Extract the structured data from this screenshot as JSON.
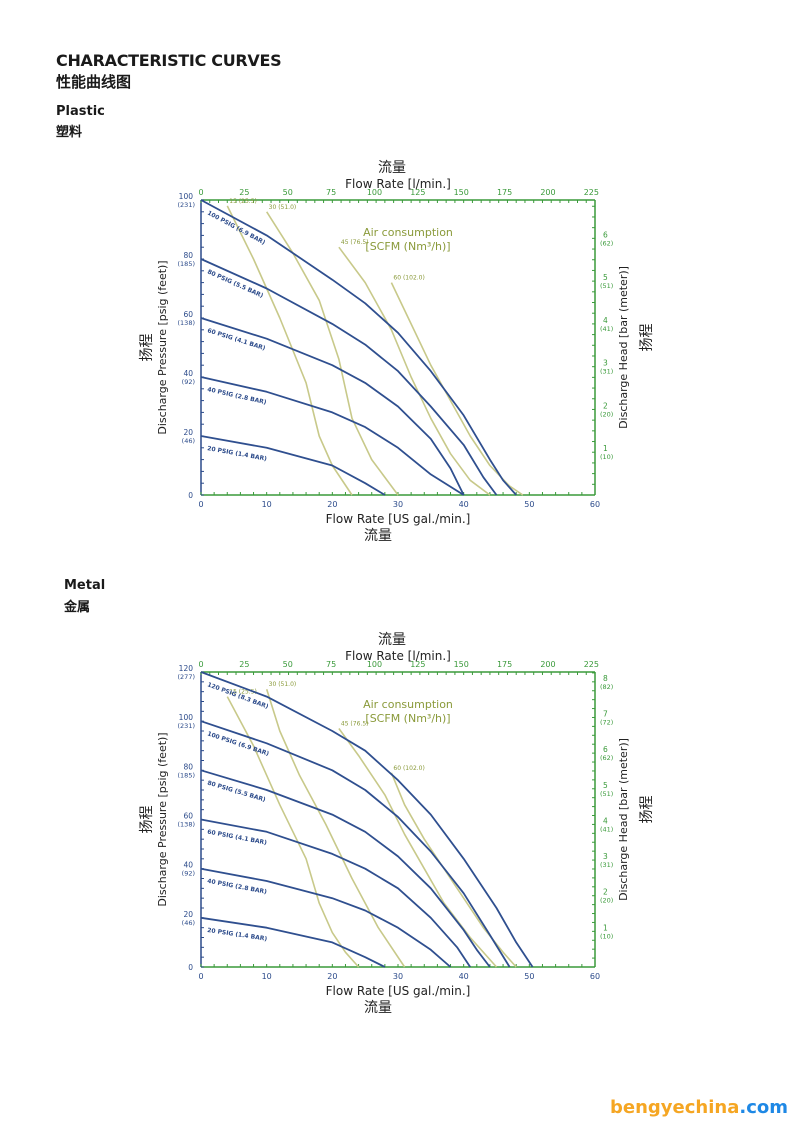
{
  "header": {
    "title_en": "CHARACTERISTIC CURVES",
    "title_zh": "性能曲线图"
  },
  "sections": [
    {
      "label_en": "Plastic",
      "label_zh": "塑料"
    },
    {
      "label_en": "Metal",
      "label_zh": "金属"
    }
  ],
  "colors": {
    "pressure_line": "#2f4f8f",
    "air_line": "#c8c98a",
    "left_axis": "#2b4a8a",
    "green_axis": "#3a9a3a",
    "air_text": "#8a9a3a"
  },
  "watermark": {
    "part1": "bengyechina",
    "part2": ".com"
  },
  "chart_data": [
    {
      "type": "line",
      "title_zh": "流量",
      "top_axis_label": "Flow Rate  [l/min.]",
      "top_ticks": [
        "0",
        "25",
        "50",
        "75",
        "100",
        "125",
        "150",
        "175",
        "200",
        "225"
      ],
      "xlabel": "Flow Rate [US gal./min.]",
      "xlabel_zh": "流量",
      "xlim": [
        0,
        60
      ],
      "x_ticks": [
        "0",
        "10",
        "20",
        "30",
        "40",
        "50",
        "60"
      ],
      "ylabel": "Discharge Pressure [psig (feet)]",
      "ylabel_zh": "扬程",
      "ylim": [
        0,
        100
      ],
      "y_ticks": [
        {
          "v": 0,
          "label": "0",
          "sub": ""
        },
        {
          "v": 20,
          "label": "20",
          "sub": "(46)"
        },
        {
          "v": 40,
          "label": "40",
          "sub": "(92)"
        },
        {
          "v": 60,
          "label": "60",
          "sub": "(138)"
        },
        {
          "v": 80,
          "label": "80",
          "sub": "(185)"
        },
        {
          "v": 100,
          "label": "100",
          "sub": "(231)"
        }
      ],
      "right_label": "Discharge Head [bar (meter)]",
      "right_label_zh": "扬程",
      "right_ticks": [
        {
          "v": 14.5,
          "label": "1",
          "sub": "(10)"
        },
        {
          "v": 29,
          "label": "2",
          "sub": "(20)"
        },
        {
          "v": 43.5,
          "label": "3",
          "sub": "(31)"
        },
        {
          "v": 58,
          "label": "4",
          "sub": "(41)"
        },
        {
          "v": 72.5,
          "label": "5",
          "sub": "(51)"
        },
        {
          "v": 87,
          "label": "6",
          "sub": "(62)"
        }
      ],
      "air_title": "Air consumption",
      "air_units": "[SCFM (Nm³/h)]",
      "series": [
        {
          "name": "100 PSIG (6.9 BAR)",
          "x": [
            0,
            10,
            20,
            25,
            30,
            35,
            40,
            44,
            46,
            48
          ],
          "y": [
            100,
            88,
            73,
            65,
            55,
            42,
            27,
            12,
            5,
            0
          ]
        },
        {
          "name": "80 PSIG (5.5 BAR)",
          "x": [
            0,
            10,
            20,
            25,
            30,
            35,
            40,
            43,
            45
          ],
          "y": [
            80,
            70,
            58,
            51,
            42,
            30,
            17,
            6,
            0
          ]
        },
        {
          "name": "60 PSIG (4.1 BAR)",
          "x": [
            0,
            10,
            20,
            25,
            30,
            35,
            38,
            40
          ],
          "y": [
            60,
            53,
            44,
            38,
            30,
            19,
            9,
            0
          ]
        },
        {
          "name": "40 PSIG (2.8 BAR)",
          "x": [
            0,
            10,
            20,
            25,
            30,
            35,
            40
          ],
          "y": [
            40,
            35,
            28,
            23,
            16,
            7,
            0
          ]
        },
        {
          "name": "20 PSIG (1.4 BAR)",
          "x": [
            0,
            10,
            20,
            25,
            28
          ],
          "y": [
            20,
            16,
            10,
            4,
            0
          ]
        }
      ],
      "air_lines": [
        {
          "name": "15 (25.5)",
          "x": [
            4,
            8,
            12,
            16,
            18,
            20,
            23
          ],
          "y": [
            98,
            80,
            60,
            38,
            20,
            10,
            0
          ]
        },
        {
          "name": "30 (51.0)",
          "x": [
            10,
            14,
            18,
            21,
            23,
            26,
            30
          ],
          "y": [
            96,
            82,
            66,
            46,
            26,
            12,
            0
          ]
        },
        {
          "name": "45 (76.5)",
          "x": [
            21,
            25,
            29,
            32,
            35,
            38,
            41,
            44
          ],
          "y": [
            84,
            72,
            56,
            40,
            26,
            14,
            5,
            0
          ]
        },
        {
          "name": "60 (102.0)",
          "x": [
            29,
            32,
            35,
            38,
            41,
            44,
            47,
            49
          ],
          "y": [
            72,
            58,
            44,
            32,
            20,
            10,
            3,
            0
          ]
        }
      ]
    },
    {
      "type": "line",
      "title_zh": "流量",
      "top_axis_label": "Flow Rate  [l/min.]",
      "top_ticks": [
        "0",
        "25",
        "50",
        "75",
        "100",
        "125",
        "150",
        "175",
        "200",
        "225"
      ],
      "xlabel": "Flow Rate [US gal./min.]",
      "xlabel_zh": "流量",
      "xlim": [
        0,
        60
      ],
      "x_ticks": [
        "0",
        "10",
        "20",
        "30",
        "40",
        "50",
        "60"
      ],
      "ylabel": "Discharge Pressure [psig (feet)]",
      "ylabel_zh": "扬程",
      "ylim": [
        0,
        120
      ],
      "y_ticks": [
        {
          "v": 0,
          "label": "0",
          "sub": ""
        },
        {
          "v": 20,
          "label": "20",
          "sub": "(46)"
        },
        {
          "v": 40,
          "label": "40",
          "sub": "(92)"
        },
        {
          "v": 60,
          "label": "60",
          "sub": "(138)"
        },
        {
          "v": 80,
          "label": "80",
          "sub": "(185)"
        },
        {
          "v": 100,
          "label": "100",
          "sub": "(231)"
        },
        {
          "v": 120,
          "label": "120",
          "sub": "(277)"
        }
      ],
      "right_label": "Discharge Head [bar (meter)]",
      "right_label_zh": "扬程",
      "right_ticks": [
        {
          "v": 14.5,
          "label": "1",
          "sub": "(10)"
        },
        {
          "v": 29,
          "label": "2",
          "sub": "(20)"
        },
        {
          "v": 43.5,
          "label": "3",
          "sub": "(31)"
        },
        {
          "v": 58,
          "label": "4",
          "sub": "(41)"
        },
        {
          "v": 72.5,
          "label": "5",
          "sub": "(51)"
        },
        {
          "v": 87,
          "label": "6",
          "sub": "(62)"
        },
        {
          "v": 101.5,
          "label": "7",
          "sub": "(72)"
        },
        {
          "v": 116,
          "label": "8",
          "sub": "(82)"
        }
      ],
      "air_title": "Air consumption",
      "air_units": "[SCFM (Nm³/h)]",
      "series": [
        {
          "name": "120 PSIG (8.3 BAR)",
          "x": [
            0,
            10,
            20,
            25,
            30,
            35,
            40,
            45,
            48,
            50.5
          ],
          "y": [
            120,
            110,
            96,
            88,
            76,
            62,
            44,
            24,
            10,
            0
          ]
        },
        {
          "name": "100 PSIG (6.9 BAR)",
          "x": [
            0,
            10,
            20,
            25,
            30,
            35,
            40,
            44,
            47
          ],
          "y": [
            100,
            91,
            80,
            72,
            61,
            47,
            30,
            13,
            0
          ]
        },
        {
          "name": "80 PSIG (5.5 BAR)",
          "x": [
            0,
            10,
            20,
            25,
            30,
            35,
            40,
            42,
            44
          ],
          "y": [
            80,
            72,
            62,
            55,
            45,
            32,
            15,
            7,
            0
          ]
        },
        {
          "name": "60 PSIG (4.1 BAR)",
          "x": [
            0,
            10,
            20,
            25,
            30,
            35,
            39,
            41
          ],
          "y": [
            60,
            55,
            46,
            40,
            32,
            20,
            8,
            0
          ]
        },
        {
          "name": "40 PSIG (2.8 BAR)",
          "x": [
            0,
            10,
            20,
            25,
            30,
            35,
            38
          ],
          "y": [
            40,
            35,
            28,
            23,
            16,
            7,
            0
          ]
        },
        {
          "name": "20 PSIG (1.4 BAR)",
          "x": [
            0,
            10,
            20,
            25,
            28
          ],
          "y": [
            20,
            16,
            10,
            4,
            0
          ]
        }
      ],
      "air_lines": [
        {
          "name": "15 (25.5)",
          "x": [
            4,
            8,
            12,
            16,
            18,
            20,
            22,
            24
          ],
          "y": [
            110,
            90,
            66,
            44,
            26,
            14,
            6,
            0
          ]
        },
        {
          "name": "30 (51.0)",
          "x": [
            10,
            12,
            15,
            19,
            23,
            27,
            31
          ],
          "y": [
            113,
            96,
            78,
            58,
            36,
            16,
            0
          ]
        },
        {
          "name": "45 (76.5)",
          "x": [
            21,
            24,
            28,
            31,
            34,
            37,
            41,
            45
          ],
          "y": [
            97,
            86,
            70,
            54,
            40,
            26,
            12,
            0
          ]
        },
        {
          "name": "60 (102.0)",
          "x": [
            29,
            31,
            34,
            37,
            40,
            43,
            46,
            48
          ],
          "y": [
            79,
            66,
            52,
            40,
            28,
            16,
            6,
            0
          ]
        }
      ]
    }
  ]
}
